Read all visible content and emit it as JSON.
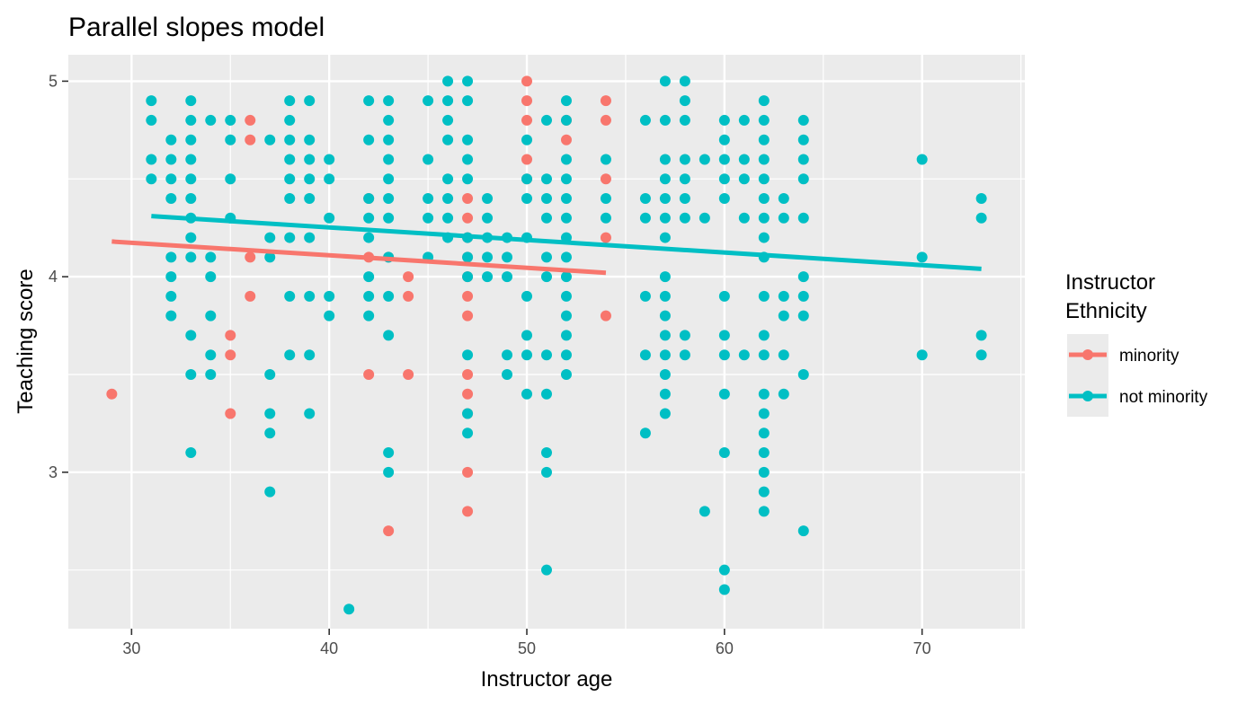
{
  "chart_data": {
    "type": "scatter",
    "title": "Parallel slopes model",
    "xlabel": "Instructor age",
    "ylabel": "Teaching score",
    "xlim": [
      26.8,
      75.2
    ],
    "ylim": [
      2.2,
      5.135
    ],
    "x_ticks": [
      30,
      40,
      50,
      60,
      70
    ],
    "y_ticks": [
      3,
      4,
      5
    ],
    "grid": true,
    "legend": {
      "title_lines": [
        "Instructor",
        "Ethnicity"
      ],
      "placement": "right"
    },
    "series": [
      {
        "name": "minority",
        "color": "#F8766D",
        "points": [
          [
            29,
            3.4
          ],
          [
            35,
            3.7
          ],
          [
            35,
            3.6
          ],
          [
            35,
            3.3
          ],
          [
            36,
            4.8
          ],
          [
            36,
            4.7
          ],
          [
            36,
            4.1
          ],
          [
            36,
            3.9
          ],
          [
            42,
            4.4
          ],
          [
            42,
            4.1
          ],
          [
            42,
            3.5
          ],
          [
            43,
            4.1
          ],
          [
            43,
            2.7
          ],
          [
            44,
            4.0
          ],
          [
            44,
            3.9
          ],
          [
            44,
            3.5
          ],
          [
            47,
            4.4
          ],
          [
            47,
            4.3
          ],
          [
            47,
            4.2
          ],
          [
            47,
            4.1
          ],
          [
            47,
            4.0
          ],
          [
            47,
            3.9
          ],
          [
            47,
            3.8
          ],
          [
            47,
            3.5
          ],
          [
            47,
            3.4
          ],
          [
            47,
            3.3
          ],
          [
            47,
            3.0
          ],
          [
            47,
            2.8
          ],
          [
            50,
            5.0
          ],
          [
            50,
            4.9
          ],
          [
            50,
            4.8
          ],
          [
            50,
            4.6
          ],
          [
            50,
            4.5
          ],
          [
            52,
            4.8
          ],
          [
            52,
            4.7
          ],
          [
            54,
            4.9
          ],
          [
            54,
            4.8
          ],
          [
            54,
            4.5
          ],
          [
            54,
            4.2
          ],
          [
            54,
            3.8
          ]
        ],
        "fit_line": [
          [
            29,
            4.18
          ],
          [
            54,
            4.02
          ]
        ]
      },
      {
        "name": "not minority",
        "color": "#00BFC4",
        "points": [
          [
            31,
            4.9
          ],
          [
            31,
            4.8
          ],
          [
            31,
            4.6
          ],
          [
            31,
            4.5
          ],
          [
            32,
            4.7
          ],
          [
            32,
            4.6
          ],
          [
            32,
            4.5
          ],
          [
            32,
            4.4
          ],
          [
            32,
            4.1
          ],
          [
            32,
            4.0
          ],
          [
            32,
            3.9
          ],
          [
            32,
            3.8
          ],
          [
            33,
            4.9
          ],
          [
            33,
            4.8
          ],
          [
            33,
            4.7
          ],
          [
            33,
            4.6
          ],
          [
            33,
            4.5
          ],
          [
            33,
            4.4
          ],
          [
            33,
            4.3
          ],
          [
            33,
            4.2
          ],
          [
            33,
            4.1
          ],
          [
            33,
            3.7
          ],
          [
            33,
            3.5
          ],
          [
            33,
            3.1
          ],
          [
            34,
            4.8
          ],
          [
            34,
            4.1
          ],
          [
            34,
            4.0
          ],
          [
            34,
            3.8
          ],
          [
            34,
            3.6
          ],
          [
            34,
            3.5
          ],
          [
            35,
            4.8
          ],
          [
            35,
            4.7
          ],
          [
            35,
            4.5
          ],
          [
            35,
            4.3
          ],
          [
            37,
            4.7
          ],
          [
            37,
            4.2
          ],
          [
            37,
            4.1
          ],
          [
            37,
            3.5
          ],
          [
            37,
            3.3
          ],
          [
            37,
            3.2
          ],
          [
            37,
            2.9
          ],
          [
            38,
            4.9
          ],
          [
            38,
            4.8
          ],
          [
            38,
            4.7
          ],
          [
            38,
            4.6
          ],
          [
            38,
            4.5
          ],
          [
            38,
            4.4
          ],
          [
            38,
            4.2
          ],
          [
            38,
            3.9
          ],
          [
            38,
            3.6
          ],
          [
            39,
            4.9
          ],
          [
            39,
            4.7
          ],
          [
            39,
            4.6
          ],
          [
            39,
            4.5
          ],
          [
            39,
            4.4
          ],
          [
            39,
            4.2
          ],
          [
            39,
            3.9
          ],
          [
            39,
            3.6
          ],
          [
            39,
            3.3
          ],
          [
            40,
            4.6
          ],
          [
            40,
            4.5
          ],
          [
            40,
            4.3
          ],
          [
            40,
            3.9
          ],
          [
            40,
            3.8
          ],
          [
            41,
            2.3
          ],
          [
            42,
            4.9
          ],
          [
            42,
            4.7
          ],
          [
            42,
            4.4
          ],
          [
            42,
            4.3
          ],
          [
            42,
            4.2
          ],
          [
            42,
            4.0
          ],
          [
            42,
            3.9
          ],
          [
            42,
            3.8
          ],
          [
            43,
            4.9
          ],
          [
            43,
            4.8
          ],
          [
            43,
            4.7
          ],
          [
            43,
            4.6
          ],
          [
            43,
            4.5
          ],
          [
            43,
            4.4
          ],
          [
            43,
            4.3
          ],
          [
            43,
            4.1
          ],
          [
            43,
            3.9
          ],
          [
            43,
            3.7
          ],
          [
            43,
            3.1
          ],
          [
            43,
            3.0
          ],
          [
            45,
            4.9
          ],
          [
            45,
            4.6
          ],
          [
            45,
            4.4
          ],
          [
            45,
            4.3
          ],
          [
            45,
            4.1
          ],
          [
            46,
            5.0
          ],
          [
            46,
            4.9
          ],
          [
            46,
            4.8
          ],
          [
            46,
            4.7
          ],
          [
            46,
            4.5
          ],
          [
            46,
            4.4
          ],
          [
            46,
            4.3
          ],
          [
            46,
            4.2
          ],
          [
            47,
            5.0
          ],
          [
            47,
            4.9
          ],
          [
            47,
            4.7
          ],
          [
            47,
            4.6
          ],
          [
            47,
            4.5
          ],
          [
            47,
            4.2
          ],
          [
            47,
            4.1
          ],
          [
            47,
            4.0
          ],
          [
            47,
            3.6
          ],
          [
            47,
            3.3
          ],
          [
            47,
            3.2
          ],
          [
            48,
            4.4
          ],
          [
            48,
            4.3
          ],
          [
            48,
            4.2
          ],
          [
            48,
            4.1
          ],
          [
            48,
            4.0
          ],
          [
            49,
            4.2
          ],
          [
            49,
            4.1
          ],
          [
            49,
            4.0
          ],
          [
            49,
            3.6
          ],
          [
            49,
            3.5
          ],
          [
            50,
            4.7
          ],
          [
            50,
            4.5
          ],
          [
            50,
            4.4
          ],
          [
            50,
            4.2
          ],
          [
            50,
            3.9
          ],
          [
            50,
            3.7
          ],
          [
            50,
            3.6
          ],
          [
            50,
            3.4
          ],
          [
            51,
            4.8
          ],
          [
            51,
            4.5
          ],
          [
            51,
            4.4
          ],
          [
            51,
            4.3
          ],
          [
            51,
            4.1
          ],
          [
            51,
            4.0
          ],
          [
            51,
            3.6
          ],
          [
            51,
            3.4
          ],
          [
            51,
            3.1
          ],
          [
            51,
            3.0
          ],
          [
            51,
            2.5
          ],
          [
            52,
            4.9
          ],
          [
            52,
            4.8
          ],
          [
            52,
            4.6
          ],
          [
            52,
            4.5
          ],
          [
            52,
            4.4
          ],
          [
            52,
            4.3
          ],
          [
            52,
            4.2
          ],
          [
            52,
            4.1
          ],
          [
            52,
            4.0
          ],
          [
            52,
            3.9
          ],
          [
            52,
            3.8
          ],
          [
            52,
            3.7
          ],
          [
            52,
            3.6
          ],
          [
            52,
            3.5
          ],
          [
            54,
            4.6
          ],
          [
            54,
            4.4
          ],
          [
            54,
            4.3
          ],
          [
            56,
            4.8
          ],
          [
            56,
            4.4
          ],
          [
            56,
            4.3
          ],
          [
            56,
            3.9
          ],
          [
            56,
            3.6
          ],
          [
            56,
            3.2
          ],
          [
            57,
            5.0
          ],
          [
            57,
            4.8
          ],
          [
            57,
            4.6
          ],
          [
            57,
            4.5
          ],
          [
            57,
            4.4
          ],
          [
            57,
            4.3
          ],
          [
            57,
            4.2
          ],
          [
            57,
            4.0
          ],
          [
            57,
            3.9
          ],
          [
            57,
            3.8
          ],
          [
            57,
            3.7
          ],
          [
            57,
            3.6
          ],
          [
            57,
            3.5
          ],
          [
            57,
            3.4
          ],
          [
            57,
            3.3
          ],
          [
            58,
            5.0
          ],
          [
            58,
            4.9
          ],
          [
            58,
            4.8
          ],
          [
            58,
            4.6
          ],
          [
            58,
            4.5
          ],
          [
            58,
            4.4
          ],
          [
            58,
            4.3
          ],
          [
            58,
            3.7
          ],
          [
            58,
            3.6
          ],
          [
            59,
            4.6
          ],
          [
            59,
            4.3
          ],
          [
            59,
            2.8
          ],
          [
            60,
            4.8
          ],
          [
            60,
            4.7
          ],
          [
            60,
            4.6
          ],
          [
            60,
            4.5
          ],
          [
            60,
            4.4
          ],
          [
            60,
            3.9
          ],
          [
            60,
            3.7
          ],
          [
            60,
            3.6
          ],
          [
            60,
            3.4
          ],
          [
            60,
            3.1
          ],
          [
            60,
            2.5
          ],
          [
            60,
            2.4
          ],
          [
            61,
            4.8
          ],
          [
            61,
            4.6
          ],
          [
            61,
            4.5
          ],
          [
            61,
            4.3
          ],
          [
            61,
            3.6
          ],
          [
            62,
            4.9
          ],
          [
            62,
            4.8
          ],
          [
            62,
            4.7
          ],
          [
            62,
            4.6
          ],
          [
            62,
            4.5
          ],
          [
            62,
            4.4
          ],
          [
            62,
            4.3
          ],
          [
            62,
            4.2
          ],
          [
            62,
            4.1
          ],
          [
            62,
            3.9
          ],
          [
            62,
            3.7
          ],
          [
            62,
            3.6
          ],
          [
            62,
            3.4
          ],
          [
            62,
            3.3
          ],
          [
            62,
            3.2
          ],
          [
            62,
            3.1
          ],
          [
            62,
            3.0
          ],
          [
            62,
            2.9
          ],
          [
            62,
            2.8
          ],
          [
            63,
            4.4
          ],
          [
            63,
            4.3
          ],
          [
            63,
            3.9
          ],
          [
            63,
            3.8
          ],
          [
            63,
            3.6
          ],
          [
            63,
            3.4
          ],
          [
            64,
            4.8
          ],
          [
            64,
            4.7
          ],
          [
            64,
            4.6
          ],
          [
            64,
            4.5
          ],
          [
            64,
            4.3
          ],
          [
            64,
            4.0
          ],
          [
            64,
            3.9
          ],
          [
            64,
            3.8
          ],
          [
            64,
            3.5
          ],
          [
            64,
            2.7
          ],
          [
            70,
            4.6
          ],
          [
            70,
            4.1
          ],
          [
            70,
            3.6
          ],
          [
            73,
            4.4
          ],
          [
            73,
            4.3
          ],
          [
            73,
            3.7
          ],
          [
            73,
            3.6
          ]
        ],
        "fit_line": [
          [
            31,
            4.31
          ],
          [
            73,
            4.04
          ]
        ]
      }
    ]
  }
}
